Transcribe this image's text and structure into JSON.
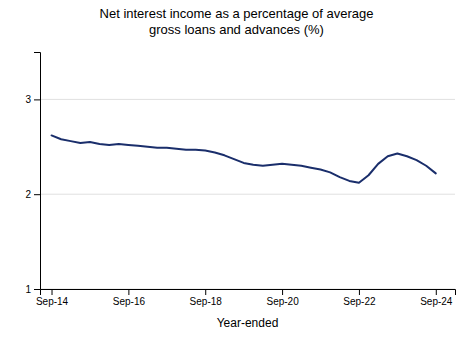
{
  "chart_data": {
    "type": "line",
    "title": "Net interest income as a percentage of average\ngross loans and advances (%)",
    "x_label": "Year-ended",
    "color": "#1a2e6b",
    "grid": true,
    "xlim": [
      -0.3,
      10.5
    ],
    "xticks": [
      {
        "value": 0,
        "label": "Sep-14"
      },
      {
        "value": 2,
        "label": "Sep-16"
      },
      {
        "value": 4,
        "label": "Sep-18"
      },
      {
        "value": 6,
        "label": "Sep-20"
      },
      {
        "value": 8,
        "label": "Sep-22"
      },
      {
        "value": 10,
        "label": "Sep-24"
      }
    ],
    "ylim": [
      1,
      3.5
    ],
    "yticks": [
      1,
      2,
      3
    ],
    "x": [
      0,
      0.25,
      0.5,
      0.75,
      1,
      1.25,
      1.5,
      1.75,
      2,
      2.25,
      2.5,
      2.75,
      3,
      3.25,
      3.5,
      3.75,
      4,
      4.25,
      4.5,
      4.75,
      5,
      5.25,
      5.5,
      5.75,
      6,
      6.25,
      6.5,
      6.75,
      7,
      7.25,
      7.5,
      7.75,
      8,
      8.25,
      8.5,
      8.75,
      9,
      9.25,
      9.5,
      9.75,
      10
    ],
    "values": [
      2.62,
      2.58,
      2.56,
      2.54,
      2.55,
      2.53,
      2.52,
      2.53,
      2.52,
      2.51,
      2.5,
      2.49,
      2.49,
      2.48,
      2.47,
      2.47,
      2.46,
      2.44,
      2.41,
      2.37,
      2.33,
      2.31,
      2.3,
      2.31,
      2.32,
      2.31,
      2.3,
      2.28,
      2.26,
      2.23,
      2.18,
      2.14,
      2.12,
      2.2,
      2.32,
      2.4,
      2.43,
      2.4,
      2.36,
      2.3,
      2.22
    ]
  }
}
